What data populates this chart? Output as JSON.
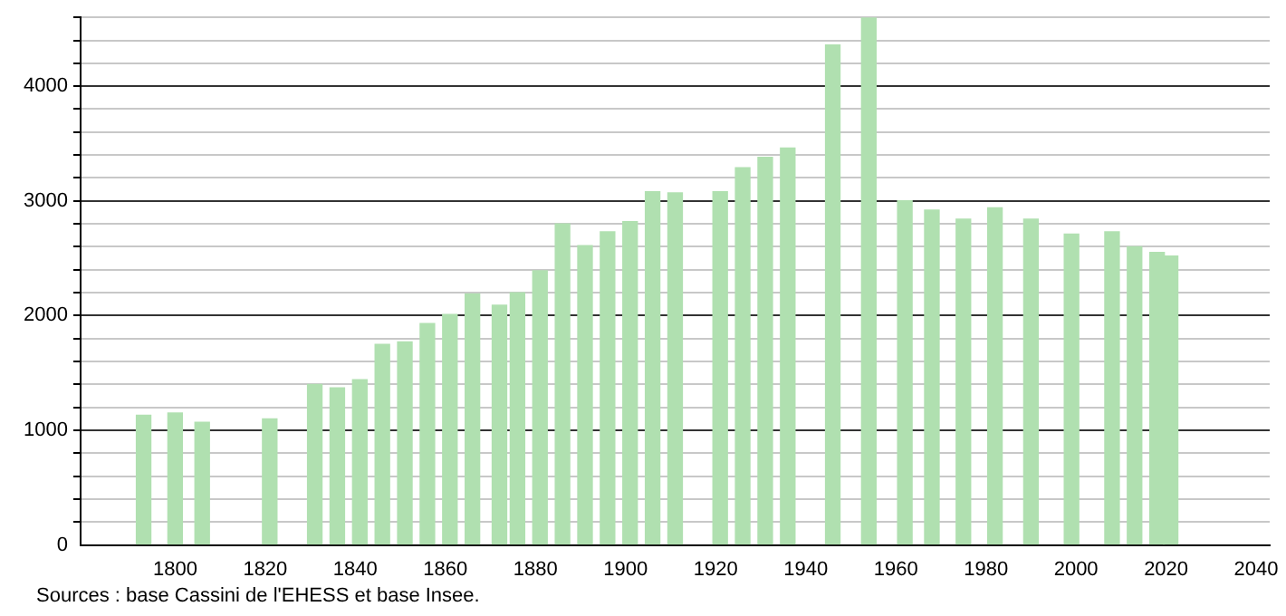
{
  "chart_data": {
    "type": "bar",
    "x": [
      1793,
      1800,
      1806,
      1821,
      1831,
      1836,
      1841,
      1846,
      1851,
      1856,
      1861,
      1866,
      1872,
      1876,
      1881,
      1886,
      1891,
      1896,
      1901,
      1906,
      1911,
      1921,
      1926,
      1931,
      1936,
      1946,
      1954,
      1962,
      1968,
      1975,
      1982,
      1990,
      1999,
      2007,
      2008,
      2013,
      2018,
      2021
    ],
    "values": [
      1130,
      1150,
      1070,
      1100,
      1400,
      1370,
      1440,
      1750,
      1770,
      1930,
      2010,
      2190,
      2090,
      2200,
      2390,
      2800,
      2610,
      2730,
      2820,
      3080,
      3070,
      3080,
      3290,
      3380,
      3460,
      4360,
      4600,
      3000,
      2920,
      2840,
      2940,
      2840,
      2710,
      null,
      2730,
      2600,
      2550,
      2520
    ],
    "color": "#b0e0b0",
    "xlim": [
      1779,
      2043
    ],
    "xticks": [
      1800,
      1820,
      1840,
      1860,
      1880,
      1900,
      1920,
      1940,
      1960,
      1980,
      2000,
      2020,
      2040
    ],
    "ylim": [
      0,
      4600
    ],
    "yticks": [
      0,
      {
        "value": 200,
        "label": null
      },
      {
        "value": 400,
        "label": null
      },
      {
        "value": 600,
        "label": null
      },
      {
        "value": 800,
        "label": null
      },
      1000,
      {
        "value": 1200,
        "label": null
      },
      {
        "value": 1400,
        "label": null
      },
      {
        "value": 1600,
        "label": null
      },
      {
        "value": 1800,
        "label": null
      },
      2000,
      {
        "value": 2200,
        "label": null
      },
      {
        "value": 2400,
        "label": null
      },
      {
        "value": 2600,
        "label": null
      },
      {
        "value": 2800,
        "label": null
      },
      3000,
      {
        "value": 3200,
        "label": null
      },
      {
        "value": 3400,
        "label": null
      },
      {
        "value": 3600,
        "label": null
      },
      {
        "value": 3800,
        "label": null
      },
      4000,
      {
        "value": 4200,
        "label": null
      },
      {
        "value": 4400,
        "label": null
      },
      {
        "value": 4600,
        "label": null
      }
    ],
    "grid": "y",
    "annotations": [
      "Sources : base Cassini de l'EHESS et base Insee."
    ]
  }
}
